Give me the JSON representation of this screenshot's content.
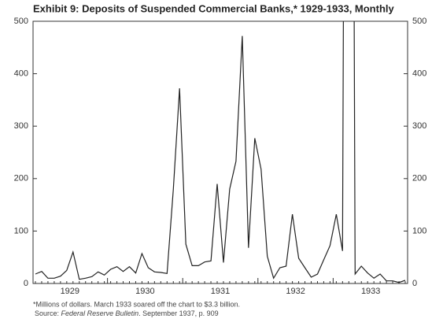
{
  "chart_data": {
    "type": "line",
    "title": "Exhibit 9: Deposits of Suspended Commercial Banks,* 1929-1933, Monthly",
    "categories": [
      "1929",
      null,
      null,
      null,
      null,
      null,
      null,
      null,
      null,
      null,
      null,
      null,
      "1930",
      null,
      null,
      null,
      null,
      null,
      null,
      null,
      null,
      null,
      null,
      null,
      "1931",
      null,
      null,
      null,
      null,
      null,
      null,
      null,
      null,
      null,
      null,
      null,
      "1932",
      null,
      null,
      null,
      null,
      null,
      null,
      null,
      null,
      null,
      null,
      null,
      "1933",
      null,
      null,
      null,
      null,
      null,
      null,
      null,
      null,
      null,
      null,
      null
    ],
    "series": [
      {
        "color": "#222222",
        "values": [
          18,
          23,
          10,
          10,
          14,
          25,
          60,
          8,
          10,
          13,
          22,
          16,
          27,
          32,
          23,
          32,
          20,
          57,
          30,
          22,
          21,
          19,
          180,
          372,
          75,
          34,
          34,
          41,
          43,
          190,
          40,
          180,
          233,
          472,
          68,
          277,
          218,
          52,
          10,
          30,
          33,
          132,
          48,
          30,
          12,
          18,
          45,
          72,
          132,
          62,
          3300,
          18,
          33,
          20,
          10,
          18,
          5,
          5,
          2,
          6
        ]
      }
    ],
    "ylim": [
      0,
      500
    ],
    "yticks": [
      0,
      100,
      200,
      300,
      400,
      500
    ],
    "right_axis": true,
    "note": "*Millions of dollars. March 1933 soared off the chart to $3.3 billion.",
    "source_label": "Source:",
    "source_title": "Federal Reserve Bulletin",
    "source_rest": ". September 1937, p. 909"
  }
}
